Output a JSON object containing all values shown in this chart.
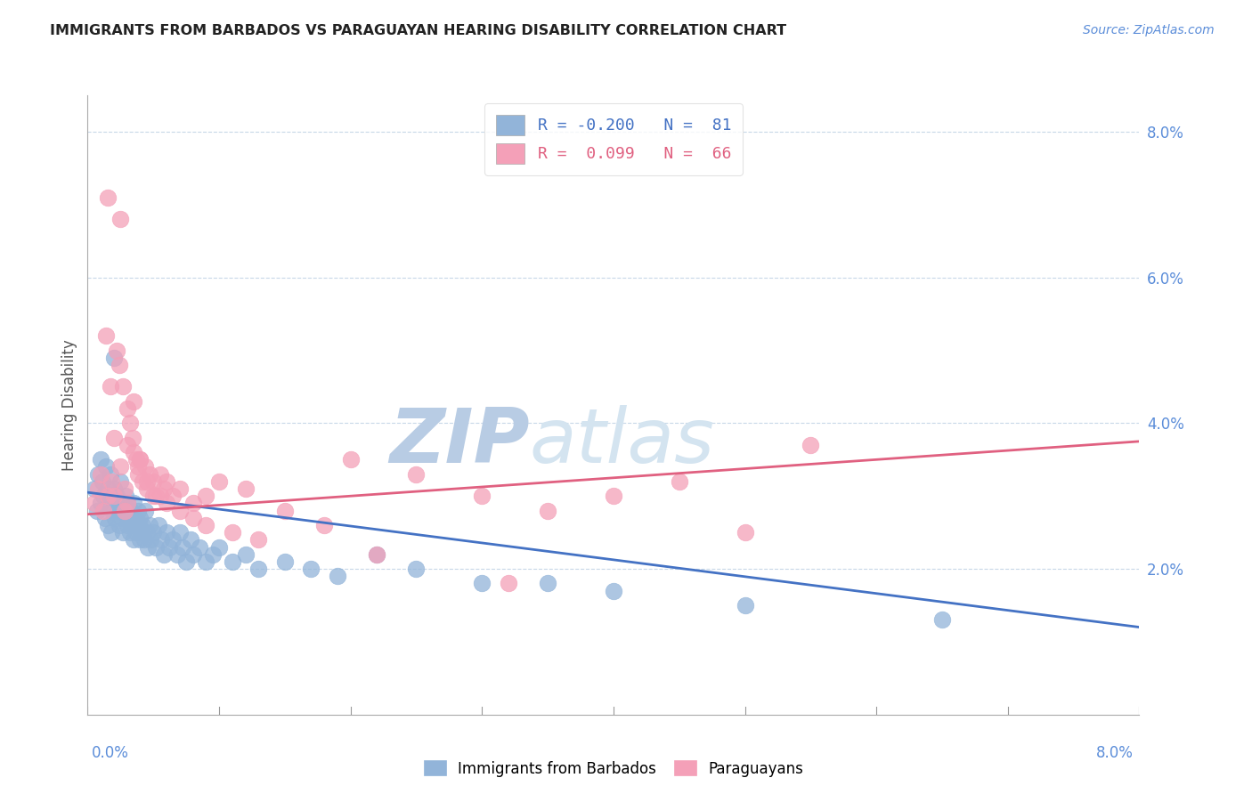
{
  "title": "IMMIGRANTS FROM BARBADOS VS PARAGUAYAN HEARING DISABILITY CORRELATION CHART",
  "source": "Source: ZipAtlas.com",
  "ylabel": "Hearing Disability",
  "series1_color": "#92b4d9",
  "series2_color": "#f4a0b8",
  "trendline1_color": "#4472c4",
  "trendline2_color": "#e06080",
  "watermark_text": "ZIPatlas",
  "watermark_color": "#d0dff0",
  "blue_scatter_x": [
    0.05,
    0.07,
    0.08,
    0.1,
    0.1,
    0.11,
    0.12,
    0.13,
    0.14,
    0.15,
    0.15,
    0.16,
    0.17,
    0.18,
    0.18,
    0.19,
    0.2,
    0.2,
    0.21,
    0.22,
    0.23,
    0.24,
    0.25,
    0.25,
    0.26,
    0.27,
    0.28,
    0.29,
    0.3,
    0.3,
    0.31,
    0.32,
    0.33,
    0.34,
    0.35,
    0.35,
    0.36,
    0.37,
    0.38,
    0.39,
    0.4,
    0.4,
    0.41,
    0.42,
    0.43,
    0.44,
    0.45,
    0.46,
    0.47,
    0.48,
    0.5,
    0.52,
    0.54,
    0.56,
    0.58,
    0.6,
    0.62,
    0.65,
    0.68,
    0.7,
    0.72,
    0.75,
    0.78,
    0.8,
    0.85,
    0.9,
    0.95,
    1.0,
    1.1,
    1.2,
    1.3,
    1.5,
    1.7,
    1.9,
    2.2,
    2.5,
    3.0,
    3.5,
    4.0,
    5.0,
    6.5
  ],
  "blue_scatter_y": [
    3.1,
    2.8,
    3.3,
    3.5,
    2.9,
    3.2,
    3.0,
    2.7,
    3.4,
    3.1,
    2.6,
    2.9,
    3.3,
    3.0,
    2.5,
    2.8,
    3.1,
    4.9,
    2.7,
    3.0,
    2.8,
    2.6,
    3.2,
    2.9,
    2.7,
    2.5,
    2.8,
    3.0,
    2.6,
    2.9,
    2.7,
    2.5,
    2.8,
    2.6,
    2.9,
    2.4,
    2.7,
    2.5,
    2.8,
    2.6,
    2.4,
    2.7,
    2.5,
    2.6,
    2.4,
    2.8,
    2.5,
    2.3,
    2.6,
    2.4,
    2.5,
    2.3,
    2.6,
    2.4,
    2.2,
    2.5,
    2.3,
    2.4,
    2.2,
    2.5,
    2.3,
    2.1,
    2.4,
    2.2,
    2.3,
    2.1,
    2.2,
    2.3,
    2.1,
    2.2,
    2.0,
    2.1,
    2.0,
    1.9,
    2.2,
    2.0,
    1.8,
    1.8,
    1.7,
    1.5,
    1.3
  ],
  "pink_scatter_x": [
    0.05,
    0.08,
    0.1,
    0.12,
    0.14,
    0.15,
    0.17,
    0.18,
    0.2,
    0.22,
    0.24,
    0.25,
    0.27,
    0.28,
    0.3,
    0.3,
    0.32,
    0.34,
    0.35,
    0.37,
    0.38,
    0.4,
    0.42,
    0.44,
    0.45,
    0.47,
    0.5,
    0.52,
    0.55,
    0.58,
    0.6,
    0.65,
    0.7,
    0.8,
    0.9,
    1.0,
    1.2,
    1.5,
    1.8,
    2.0,
    2.5,
    3.0,
    3.5,
    4.5,
    5.0,
    5.5,
    0.15,
    0.25,
    0.35,
    0.2,
    0.3,
    0.4,
    0.5,
    0.6,
    0.7,
    0.8,
    0.9,
    1.1,
    1.3,
    2.2,
    3.2,
    4.0,
    0.45,
    0.55,
    0.28,
    0.38
  ],
  "pink_scatter_y": [
    2.9,
    3.1,
    3.3,
    2.8,
    5.2,
    3.0,
    4.5,
    3.2,
    3.0,
    5.0,
    4.8,
    3.4,
    4.5,
    3.1,
    4.2,
    2.9,
    4.0,
    3.8,
    3.6,
    3.5,
    3.3,
    3.5,
    3.2,
    3.4,
    3.1,
    3.3,
    3.2,
    3.0,
    3.3,
    3.1,
    3.2,
    3.0,
    3.1,
    2.9,
    3.0,
    3.2,
    3.1,
    2.8,
    2.6,
    3.5,
    3.3,
    3.0,
    2.8,
    3.2,
    2.5,
    3.7,
    7.1,
    6.8,
    4.3,
    3.8,
    3.7,
    3.5,
    3.0,
    2.9,
    2.8,
    2.7,
    2.6,
    2.5,
    2.4,
    2.2,
    1.8,
    3.0,
    3.2,
    3.0,
    2.8,
    3.4
  ]
}
